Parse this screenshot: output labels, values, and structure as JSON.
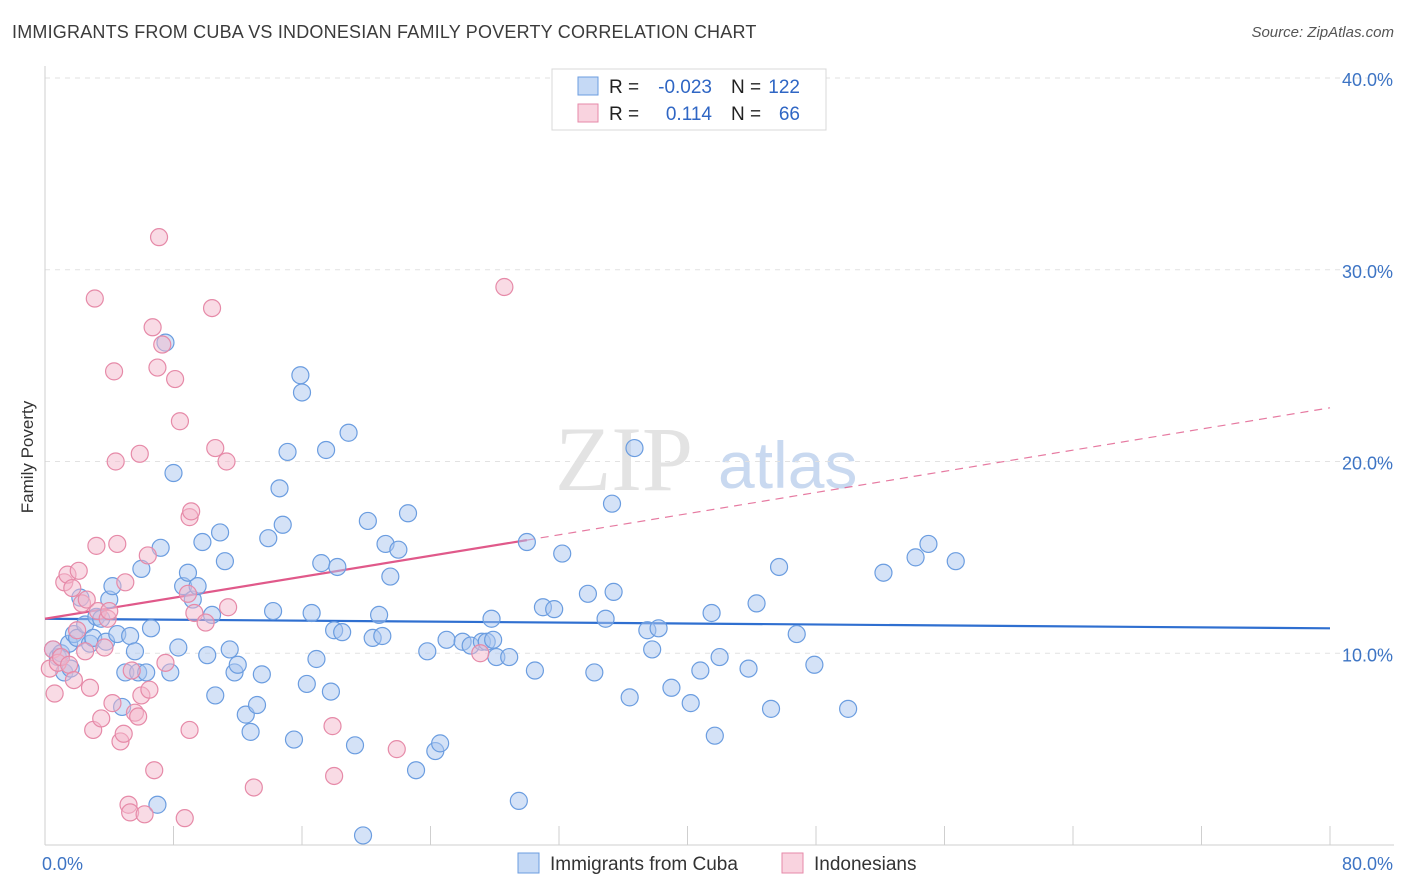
{
  "title": "IMMIGRANTS FROM CUBA VS INDONESIAN FAMILY POVERTY CORRELATION CHART",
  "source": "Source: ZipAtlas.com",
  "watermark": {
    "zip": "ZIP",
    "atlas": "atlas"
  },
  "stats": [
    {
      "r_label": "R =",
      "r_value": "-0.023",
      "n_label": "N =",
      "n_value": "122",
      "color": "#a9c6ef"
    },
    {
      "r_label": "R =",
      "r_value": "0.114",
      "n_label": "N =",
      "n_value": "66",
      "color": "#f4b8cb"
    }
  ],
  "chart_data": {
    "type": "scatter",
    "ylabel": "Family Poverty",
    "xlim": [
      0,
      80
    ],
    "ylim": [
      0,
      40
    ],
    "x_tick_labels": [
      {
        "value": 0,
        "label": "0.0%"
      },
      {
        "value": 80,
        "label": "80.0%"
      }
    ],
    "y_ticks": [
      {
        "value": 10,
        "label": "10.0%"
      },
      {
        "value": 20,
        "label": "20.0%"
      },
      {
        "value": 30,
        "label": "30.0%"
      },
      {
        "value": 40,
        "label": "40.0%"
      }
    ],
    "grid": true,
    "legend_position": "bottom-center",
    "series": [
      {
        "name": "Immigrants from Cuba",
        "color": "#a9c6ef",
        "stroke": "#6b9de0",
        "trend": {
          "x0": 0,
          "y0": 11.8,
          "x1": 80,
          "y1": 11.3,
          "color": "#2f6fd0"
        },
        "points": [
          [
            0.5,
            10.2
          ],
          [
            0.8,
            9.8
          ],
          [
            1.0,
            10.0
          ],
          [
            1.2,
            9.0
          ],
          [
            1.5,
            10.5
          ],
          [
            1.6,
            9.2
          ],
          [
            1.8,
            11.0
          ],
          [
            2.0,
            10.8
          ],
          [
            2.2,
            12.9
          ],
          [
            2.5,
            11.5
          ],
          [
            2.8,
            10.5
          ],
          [
            3.0,
            10.8
          ],
          [
            3.2,
            11.9
          ],
          [
            3.5,
            11.8
          ],
          [
            3.8,
            10.6
          ],
          [
            4.0,
            12.8
          ],
          [
            4.2,
            13.5
          ],
          [
            4.5,
            11.0
          ],
          [
            4.8,
            7.2
          ],
          [
            5.0,
            9.0
          ],
          [
            5.3,
            10.9
          ],
          [
            5.6,
            10.1
          ],
          [
            5.8,
            9.0
          ],
          [
            6.0,
            14.4
          ],
          [
            6.3,
            9.0
          ],
          [
            6.6,
            11.3
          ],
          [
            7.0,
            2.1
          ],
          [
            7.2,
            15.5
          ],
          [
            7.5,
            26.2
          ],
          [
            7.8,
            9.0
          ],
          [
            8.0,
            19.4
          ],
          [
            8.3,
            10.3
          ],
          [
            8.6,
            13.5
          ],
          [
            8.9,
            14.2
          ],
          [
            9.2,
            12.8
          ],
          [
            9.5,
            13.5
          ],
          [
            9.8,
            15.8
          ],
          [
            10.1,
            9.9
          ],
          [
            10.4,
            12.0
          ],
          [
            10.6,
            7.8
          ],
          [
            10.9,
            16.3
          ],
          [
            11.2,
            14.8
          ],
          [
            11.5,
            10.2
          ],
          [
            11.8,
            9.0
          ],
          [
            12.0,
            9.4
          ],
          [
            12.5,
            6.8
          ],
          [
            12.8,
            5.9
          ],
          [
            13.2,
            7.3
          ],
          [
            13.5,
            8.9
          ],
          [
            13.9,
            16.0
          ],
          [
            14.2,
            12.2
          ],
          [
            14.6,
            18.6
          ],
          [
            14.8,
            16.7
          ],
          [
            15.1,
            20.5
          ],
          [
            15.5,
            5.5
          ],
          [
            15.9,
            24.5
          ],
          [
            16.0,
            23.6
          ],
          [
            16.3,
            8.4
          ],
          [
            16.6,
            12.1
          ],
          [
            16.9,
            9.7
          ],
          [
            17.2,
            14.7
          ],
          [
            17.5,
            20.6
          ],
          [
            17.8,
            8.0
          ],
          [
            18.0,
            11.2
          ],
          [
            18.2,
            14.5
          ],
          [
            18.5,
            11.1
          ],
          [
            18.9,
            21.5
          ],
          [
            19.3,
            5.2
          ],
          [
            19.8,
            0.5
          ],
          [
            20.1,
            16.9
          ],
          [
            20.4,
            10.8
          ],
          [
            20.8,
            12.0
          ],
          [
            21.0,
            10.9
          ],
          [
            21.2,
            15.7
          ],
          [
            21.5,
            14.0
          ],
          [
            22.0,
            15.4
          ],
          [
            22.6,
            17.3
          ],
          [
            23.1,
            3.9
          ],
          [
            23.8,
            10.1
          ],
          [
            24.3,
            4.9
          ],
          [
            24.6,
            5.3
          ],
          [
            25.0,
            10.7
          ],
          [
            26.0,
            10.6
          ],
          [
            26.5,
            10.4
          ],
          [
            27.2,
            10.6
          ],
          [
            27.5,
            10.6
          ],
          [
            27.8,
            11.8
          ],
          [
            27.9,
            10.7
          ],
          [
            28.1,
            9.8
          ],
          [
            28.9,
            9.8
          ],
          [
            29.5,
            2.3
          ],
          [
            30.0,
            15.8
          ],
          [
            30.5,
            9.1
          ],
          [
            31.0,
            12.4
          ],
          [
            31.7,
            12.3
          ],
          [
            32.2,
            15.2
          ],
          [
            33.8,
            13.1
          ],
          [
            34.2,
            9.0
          ],
          [
            34.9,
            11.8
          ],
          [
            35.3,
            17.8
          ],
          [
            35.4,
            13.2
          ],
          [
            36.4,
            7.7
          ],
          [
            37.5,
            11.2
          ],
          [
            37.8,
            10.2
          ],
          [
            38.2,
            11.3
          ],
          [
            39.0,
            8.2
          ],
          [
            40.2,
            7.4
          ],
          [
            40.8,
            9.1
          ],
          [
            41.5,
            12.1
          ],
          [
            41.7,
            5.7
          ],
          [
            42.0,
            9.8
          ],
          [
            43.8,
            9.2
          ],
          [
            44.3,
            12.6
          ],
          [
            45.2,
            7.1
          ],
          [
            45.7,
            14.5
          ],
          [
            46.8,
            11.0
          ],
          [
            47.9,
            9.4
          ],
          [
            50.0,
            7.1
          ],
          [
            52.2,
            14.2
          ],
          [
            54.2,
            15.0
          ],
          [
            55.0,
            15.7
          ],
          [
            56.7,
            14.8
          ],
          [
            36.7,
            20.7
          ]
        ]
      },
      {
        "name": "Indonesians",
        "color": "#f4b8cb",
        "stroke": "#e68aa8",
        "trend": {
          "x0": 0,
          "y0": 11.8,
          "x1": 30,
          "y1": 15.9,
          "dash_x1": 80,
          "dash_y1": 22.8,
          "color": "#e0598a"
        },
        "points": [
          [
            0.3,
            9.2
          ],
          [
            0.5,
            10.2
          ],
          [
            0.6,
            7.9
          ],
          [
            0.8,
            9.5
          ],
          [
            1.0,
            9.8
          ],
          [
            1.2,
            13.7
          ],
          [
            1.4,
            14.1
          ],
          [
            1.5,
            9.4
          ],
          [
            1.7,
            13.4
          ],
          [
            1.8,
            8.6
          ],
          [
            2.0,
            11.2
          ],
          [
            2.1,
            14.3
          ],
          [
            2.3,
            12.6
          ],
          [
            2.5,
            10.1
          ],
          [
            2.6,
            12.8
          ],
          [
            2.8,
            8.2
          ],
          [
            3.0,
            6.0
          ],
          [
            3.1,
            28.5
          ],
          [
            3.2,
            15.6
          ],
          [
            3.3,
            12.2
          ],
          [
            3.5,
            6.6
          ],
          [
            3.7,
            10.3
          ],
          [
            3.9,
            11.8
          ],
          [
            4.0,
            12.2
          ],
          [
            4.2,
            7.4
          ],
          [
            4.3,
            24.7
          ],
          [
            4.4,
            20.0
          ],
          [
            4.5,
            15.7
          ],
          [
            4.7,
            5.4
          ],
          [
            4.9,
            5.8
          ],
          [
            5.0,
            13.7
          ],
          [
            5.2,
            2.1
          ],
          [
            5.3,
            1.7
          ],
          [
            5.4,
            9.1
          ],
          [
            5.6,
            6.9
          ],
          [
            5.9,
            20.4
          ],
          [
            6.0,
            7.8
          ],
          [
            6.2,
            1.6
          ],
          [
            6.4,
            15.1
          ],
          [
            6.5,
            8.1
          ],
          [
            6.7,
            27.0
          ],
          [
            6.8,
            3.9
          ],
          [
            7.0,
            24.9
          ],
          [
            7.1,
            31.7
          ],
          [
            7.3,
            26.1
          ],
          [
            7.5,
            9.5
          ],
          [
            8.1,
            24.3
          ],
          [
            8.4,
            22.1
          ],
          [
            8.7,
            1.4
          ],
          [
            8.9,
            13.1
          ],
          [
            9.0,
            17.1
          ],
          [
            9.1,
            17.4
          ],
          [
            9.3,
            12.1
          ],
          [
            10.0,
            11.6
          ],
          [
            10.4,
            28.0
          ],
          [
            10.6,
            20.7
          ],
          [
            11.3,
            20.0
          ],
          [
            11.4,
            12.4
          ],
          [
            13.0,
            3.0
          ],
          [
            17.9,
            6.2
          ],
          [
            18.0,
            3.6
          ],
          [
            21.9,
            5.0
          ],
          [
            27.1,
            10.0
          ],
          [
            28.6,
            29.1
          ],
          [
            9.0,
            6.0
          ],
          [
            5.8,
            6.7
          ]
        ]
      }
    ]
  }
}
